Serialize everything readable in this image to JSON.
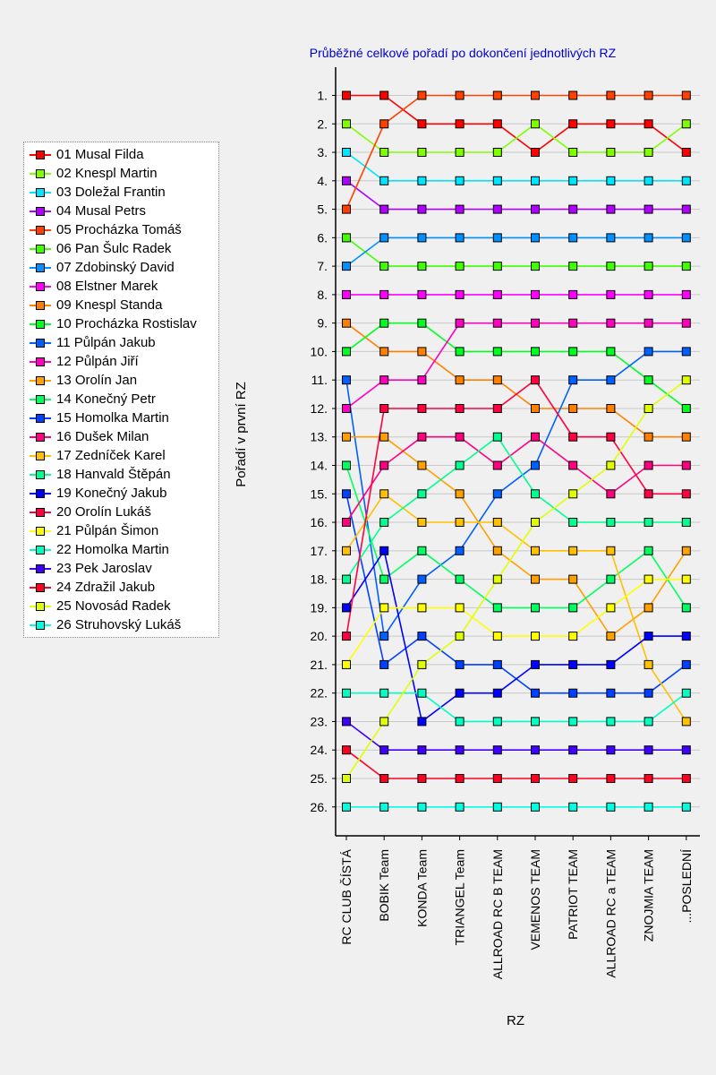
{
  "chart_data": {
    "type": "line",
    "title": "Průběžné celkové pořadí po dokončení jednotlivých RZ",
    "xlabel": "RZ",
    "ylabel": "Pořadí v první RZ",
    "categories": [
      "RC CLUB ČÍSTÁ",
      "BOBIK Team",
      "KONDA Team",
      "TRIANGEL Team",
      "ALLROAD RC  B TEAM",
      "VEMENOS TEAM",
      "PATRIOT TEAM",
      "ALLROAD RC  a TEAM",
      "ZNOJMIA TEAM",
      "...POSLEDNÍ"
    ],
    "yticks": [
      "1.",
      "2.",
      "3.",
      "4.",
      "5.",
      "6.",
      "7.",
      "8.",
      "9.",
      "10.",
      "11.",
      "12.",
      "13.",
      "14.",
      "15.",
      "16.",
      "17.",
      "18.",
      "19.",
      "20.",
      "21.",
      "22.",
      "23.",
      "24.",
      "25.",
      "26."
    ],
    "ylim": [
      0,
      27
    ],
    "y_inverted": true,
    "grid": true,
    "legend_position": "left",
    "series": [
      {
        "name": "01 Musal Filda",
        "color": "#ff0000",
        "values": [
          1,
          1,
          2,
          2,
          2,
          3,
          2,
          2,
          2,
          3
        ]
      },
      {
        "name": "02 Knespl Martin",
        "color": "#80ff00",
        "values": [
          2,
          3,
          3,
          3,
          3,
          2,
          3,
          3,
          3,
          2
        ]
      },
      {
        "name": "03 Doležal Frantin",
        "color": "#00e5ff",
        "values": [
          3,
          4,
          4,
          4,
          4,
          4,
          4,
          4,
          4,
          4
        ]
      },
      {
        "name": "04 Musal Petrs",
        "color": "#b000ff",
        "values": [
          4,
          5,
          5,
          5,
          5,
          5,
          5,
          5,
          5,
          5
        ]
      },
      {
        "name": "05 Procházka Tomáš",
        "color": "#ff4000",
        "values": [
          5,
          2,
          1,
          1,
          1,
          1,
          1,
          1,
          1,
          1
        ]
      },
      {
        "name": "06 Pan Šulc Radek",
        "color": "#40ff00",
        "values": [
          6,
          7,
          7,
          7,
          7,
          7,
          7,
          7,
          7,
          7
        ]
      },
      {
        "name": "07 Zdobinský David",
        "color": "#0090ff",
        "values": [
          7,
          6,
          6,
          6,
          6,
          6,
          6,
          6,
          6,
          6
        ]
      },
      {
        "name": "08 Elstner Marek",
        "color": "#ff00ff",
        "values": [
          8,
          8,
          8,
          8,
          8,
          8,
          8,
          8,
          8,
          8
        ]
      },
      {
        "name": "09 Knespl Standa",
        "color": "#ff8000",
        "values": [
          9,
          10,
          10,
          11,
          11,
          12,
          12,
          12,
          13,
          13
        ]
      },
      {
        "name": "10 Procházka Rostislav",
        "color": "#00ff20",
        "values": [
          10,
          9,
          9,
          10,
          10,
          10,
          10,
          10,
          11,
          12
        ]
      },
      {
        "name": "11 Půlpán Jakub",
        "color": "#0060ff",
        "values": [
          11,
          20,
          18,
          17,
          15,
          14,
          11,
          11,
          10,
          10
        ]
      },
      {
        "name": "12 Půlpán Jiří",
        "color": "#ff00c0",
        "values": [
          12,
          11,
          11,
          9,
          9,
          9,
          9,
          9,
          9,
          9
        ]
      },
      {
        "name": "13 Orolín Jan",
        "color": "#ffa000",
        "values": [
          13,
          13,
          14,
          15,
          17,
          18,
          18,
          20,
          19,
          17
        ]
      },
      {
        "name": "14 Konečný Petr",
        "color": "#00ff60",
        "values": [
          14,
          18,
          17,
          18,
          19,
          19,
          19,
          18,
          17,
          19
        ]
      },
      {
        "name": "15 Homolka Martin",
        "color": "#0040ff",
        "values": [
          15,
          21,
          20,
          21,
          21,
          22,
          22,
          22,
          22,
          21
        ]
      },
      {
        "name": "16 Dušek Milan",
        "color": "#ff0080",
        "values": [
          16,
          14,
          13,
          13,
          14,
          13,
          14,
          15,
          14,
          14
        ]
      },
      {
        "name": "17 Zedníček Karel",
        "color": "#ffc000",
        "values": [
          17,
          15,
          16,
          16,
          16,
          17,
          17,
          17,
          21,
          23
        ]
      },
      {
        "name": "18 Hanvald Štěpán",
        "color": "#00ff90",
        "values": [
          18,
          16,
          15,
          14,
          13,
          15,
          16,
          16,
          16,
          16
        ]
      },
      {
        "name": "19 Konečný Jakub",
        "color": "#0000ff",
        "values": [
          19,
          17,
          23,
          22,
          22,
          21,
          21,
          21,
          20,
          20
        ]
      },
      {
        "name": "20 Orolín Lukáš",
        "color": "#ff0040",
        "values": [
          20,
          12,
          12,
          12,
          12,
          11,
          13,
          13,
          15,
          15
        ]
      },
      {
        "name": "21 Půlpán Šimon",
        "color": "#ffff00",
        "values": [
          21,
          19,
          19,
          19,
          20,
          20,
          20,
          19,
          18,
          18
        ]
      },
      {
        "name": "22 Homolka Martin",
        "color": "#00ffc0",
        "values": [
          22,
          22,
          22,
          23,
          23,
          23,
          23,
          23,
          23,
          22
        ]
      },
      {
        "name": "23 Pek Jaroslav",
        "color": "#4000ff",
        "values": [
          23,
          24,
          24,
          24,
          24,
          24,
          24,
          24,
          24,
          24
        ]
      },
      {
        "name": "24 Zdražil Jakub",
        "color": "#ff0020",
        "values": [
          24,
          25,
          25,
          25,
          25,
          25,
          25,
          25,
          25,
          25
        ]
      },
      {
        "name": "25 Novosád Radek",
        "color": "#e0ff00",
        "values": [
          25,
          23,
          21,
          20,
          18,
          16,
          15,
          14,
          12,
          11
        ]
      },
      {
        "name": "26 Struhovský Lukáš",
        "color": "#00ffe0",
        "values": [
          26,
          26,
          26,
          26,
          26,
          26,
          26,
          26,
          26,
          26
        ]
      }
    ]
  }
}
